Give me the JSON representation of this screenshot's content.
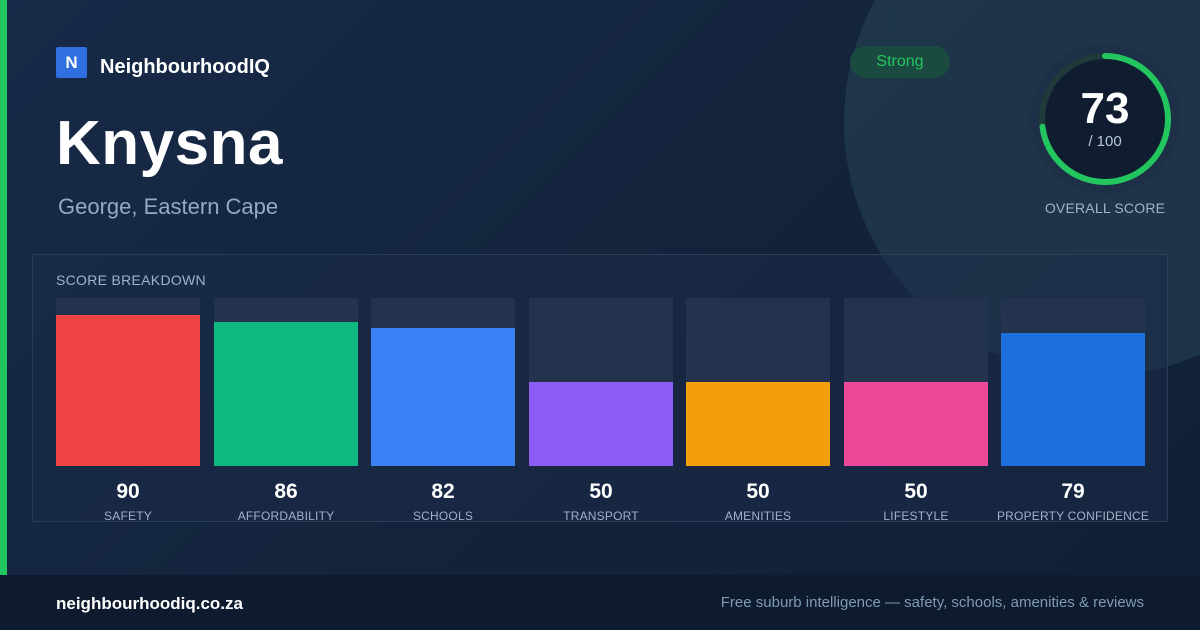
{
  "brand": {
    "logo_letter": "N",
    "name": "NeighbourhoodIQ"
  },
  "suburb": {
    "name": "Knysna",
    "location": "George, Eastern Cape"
  },
  "badge": {
    "label": "Strong",
    "color": "#22c55e"
  },
  "overall": {
    "score": "73",
    "max": "/ 100",
    "caption": "OVERALL SCORE",
    "fraction": 0.73,
    "ring_color": "#22c55e"
  },
  "breakdown": {
    "title": "SCORE BREAKDOWN",
    "items": [
      {
        "label": "SAFETY",
        "value": 90,
        "color": "#ef4444"
      },
      {
        "label": "AFFORDABILITY",
        "value": 86,
        "color": "#10b981"
      },
      {
        "label": "SCHOOLS",
        "value": 82,
        "color": "#3b82f6"
      },
      {
        "label": "TRANSPORT",
        "value": 50,
        "color": "#8b5cf6"
      },
      {
        "label": "AMENITIES",
        "value": 50,
        "color": "#f59e0b"
      },
      {
        "label": "LIFESTYLE",
        "value": 50,
        "color": "#ec4899"
      },
      {
        "label": "PROPERTY CONFIDENCE",
        "value": 79,
        "color": "#1d6fdc"
      }
    ]
  },
  "footer": {
    "domain": "neighbourhoodiq.co.za",
    "tagline": "Free suburb intelligence — safety, schools, amenities & reviews"
  }
}
